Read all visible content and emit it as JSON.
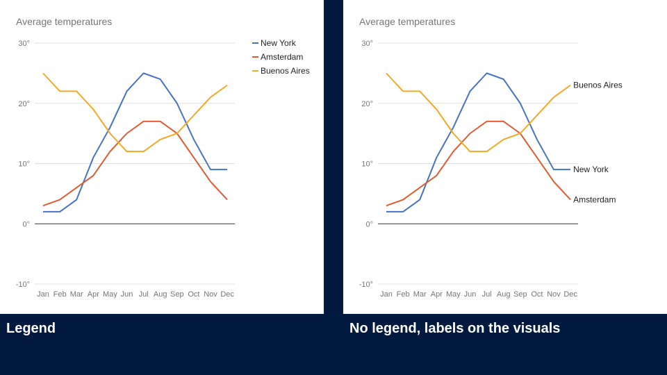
{
  "captions": {
    "left": "Legend",
    "right": "No legend, labels on the visuals"
  },
  "chart_data": [
    {
      "type": "line",
      "title": "Average temperatures",
      "xlabel": "",
      "ylabel": "",
      "categories": [
        "Jan",
        "Feb",
        "Mar",
        "Apr",
        "May",
        "Jun",
        "Jul",
        "Aug",
        "Sep",
        "Oct",
        "Nov",
        "Dec"
      ],
      "yticks": [
        "30°",
        "20°",
        "10°",
        "0°",
        "-10°"
      ],
      "ytick_values": [
        30,
        20,
        10,
        0,
        -10
      ],
      "ylim": [
        -10,
        30
      ],
      "grid": true,
      "legend": "right",
      "series": [
        {
          "name": "New York",
          "color": "#4472c4",
          "values": [
            2,
            2,
            4,
            11,
            16,
            22,
            25,
            24,
            20,
            14,
            9,
            9
          ]
        },
        {
          "name": "Amsterdam",
          "color": "#e15a2f",
          "values": [
            3,
            4,
            6,
            8,
            12,
            15,
            17,
            17,
            15,
            11,
            7,
            4
          ]
        },
        {
          "name": "Buenos Aires",
          "color": "#f4a925",
          "values": [
            25,
            22,
            22,
            19,
            15,
            12,
            12,
            14,
            15,
            18,
            21,
            23
          ]
        }
      ]
    },
    {
      "type": "line",
      "title": "Average temperatures",
      "xlabel": "",
      "ylabel": "",
      "categories": [
        "Jan",
        "Feb",
        "Mar",
        "Apr",
        "May",
        "Jun",
        "Jul",
        "Aug",
        "Sep",
        "Oct",
        "Nov",
        "Dec"
      ],
      "yticks": [
        "30°",
        "20°",
        "10°",
        "0°",
        "-10°"
      ],
      "ytick_values": [
        30,
        20,
        10,
        0,
        -10
      ],
      "ylim": [
        -10,
        30
      ],
      "grid": true,
      "legend": "none",
      "series": [
        {
          "name": "New York",
          "color": "#4472c4",
          "values": [
            2,
            2,
            4,
            11,
            16,
            22,
            25,
            24,
            20,
            14,
            9,
            9
          ]
        },
        {
          "name": "Amsterdam",
          "color": "#e15a2f",
          "values": [
            3,
            4,
            6,
            8,
            12,
            15,
            17,
            17,
            15,
            11,
            7,
            4
          ]
        },
        {
          "name": "Buenos Aires",
          "color": "#f4a925",
          "values": [
            25,
            22,
            22,
            19,
            15,
            12,
            12,
            14,
            15,
            18,
            21,
            23
          ]
        }
      ]
    }
  ]
}
